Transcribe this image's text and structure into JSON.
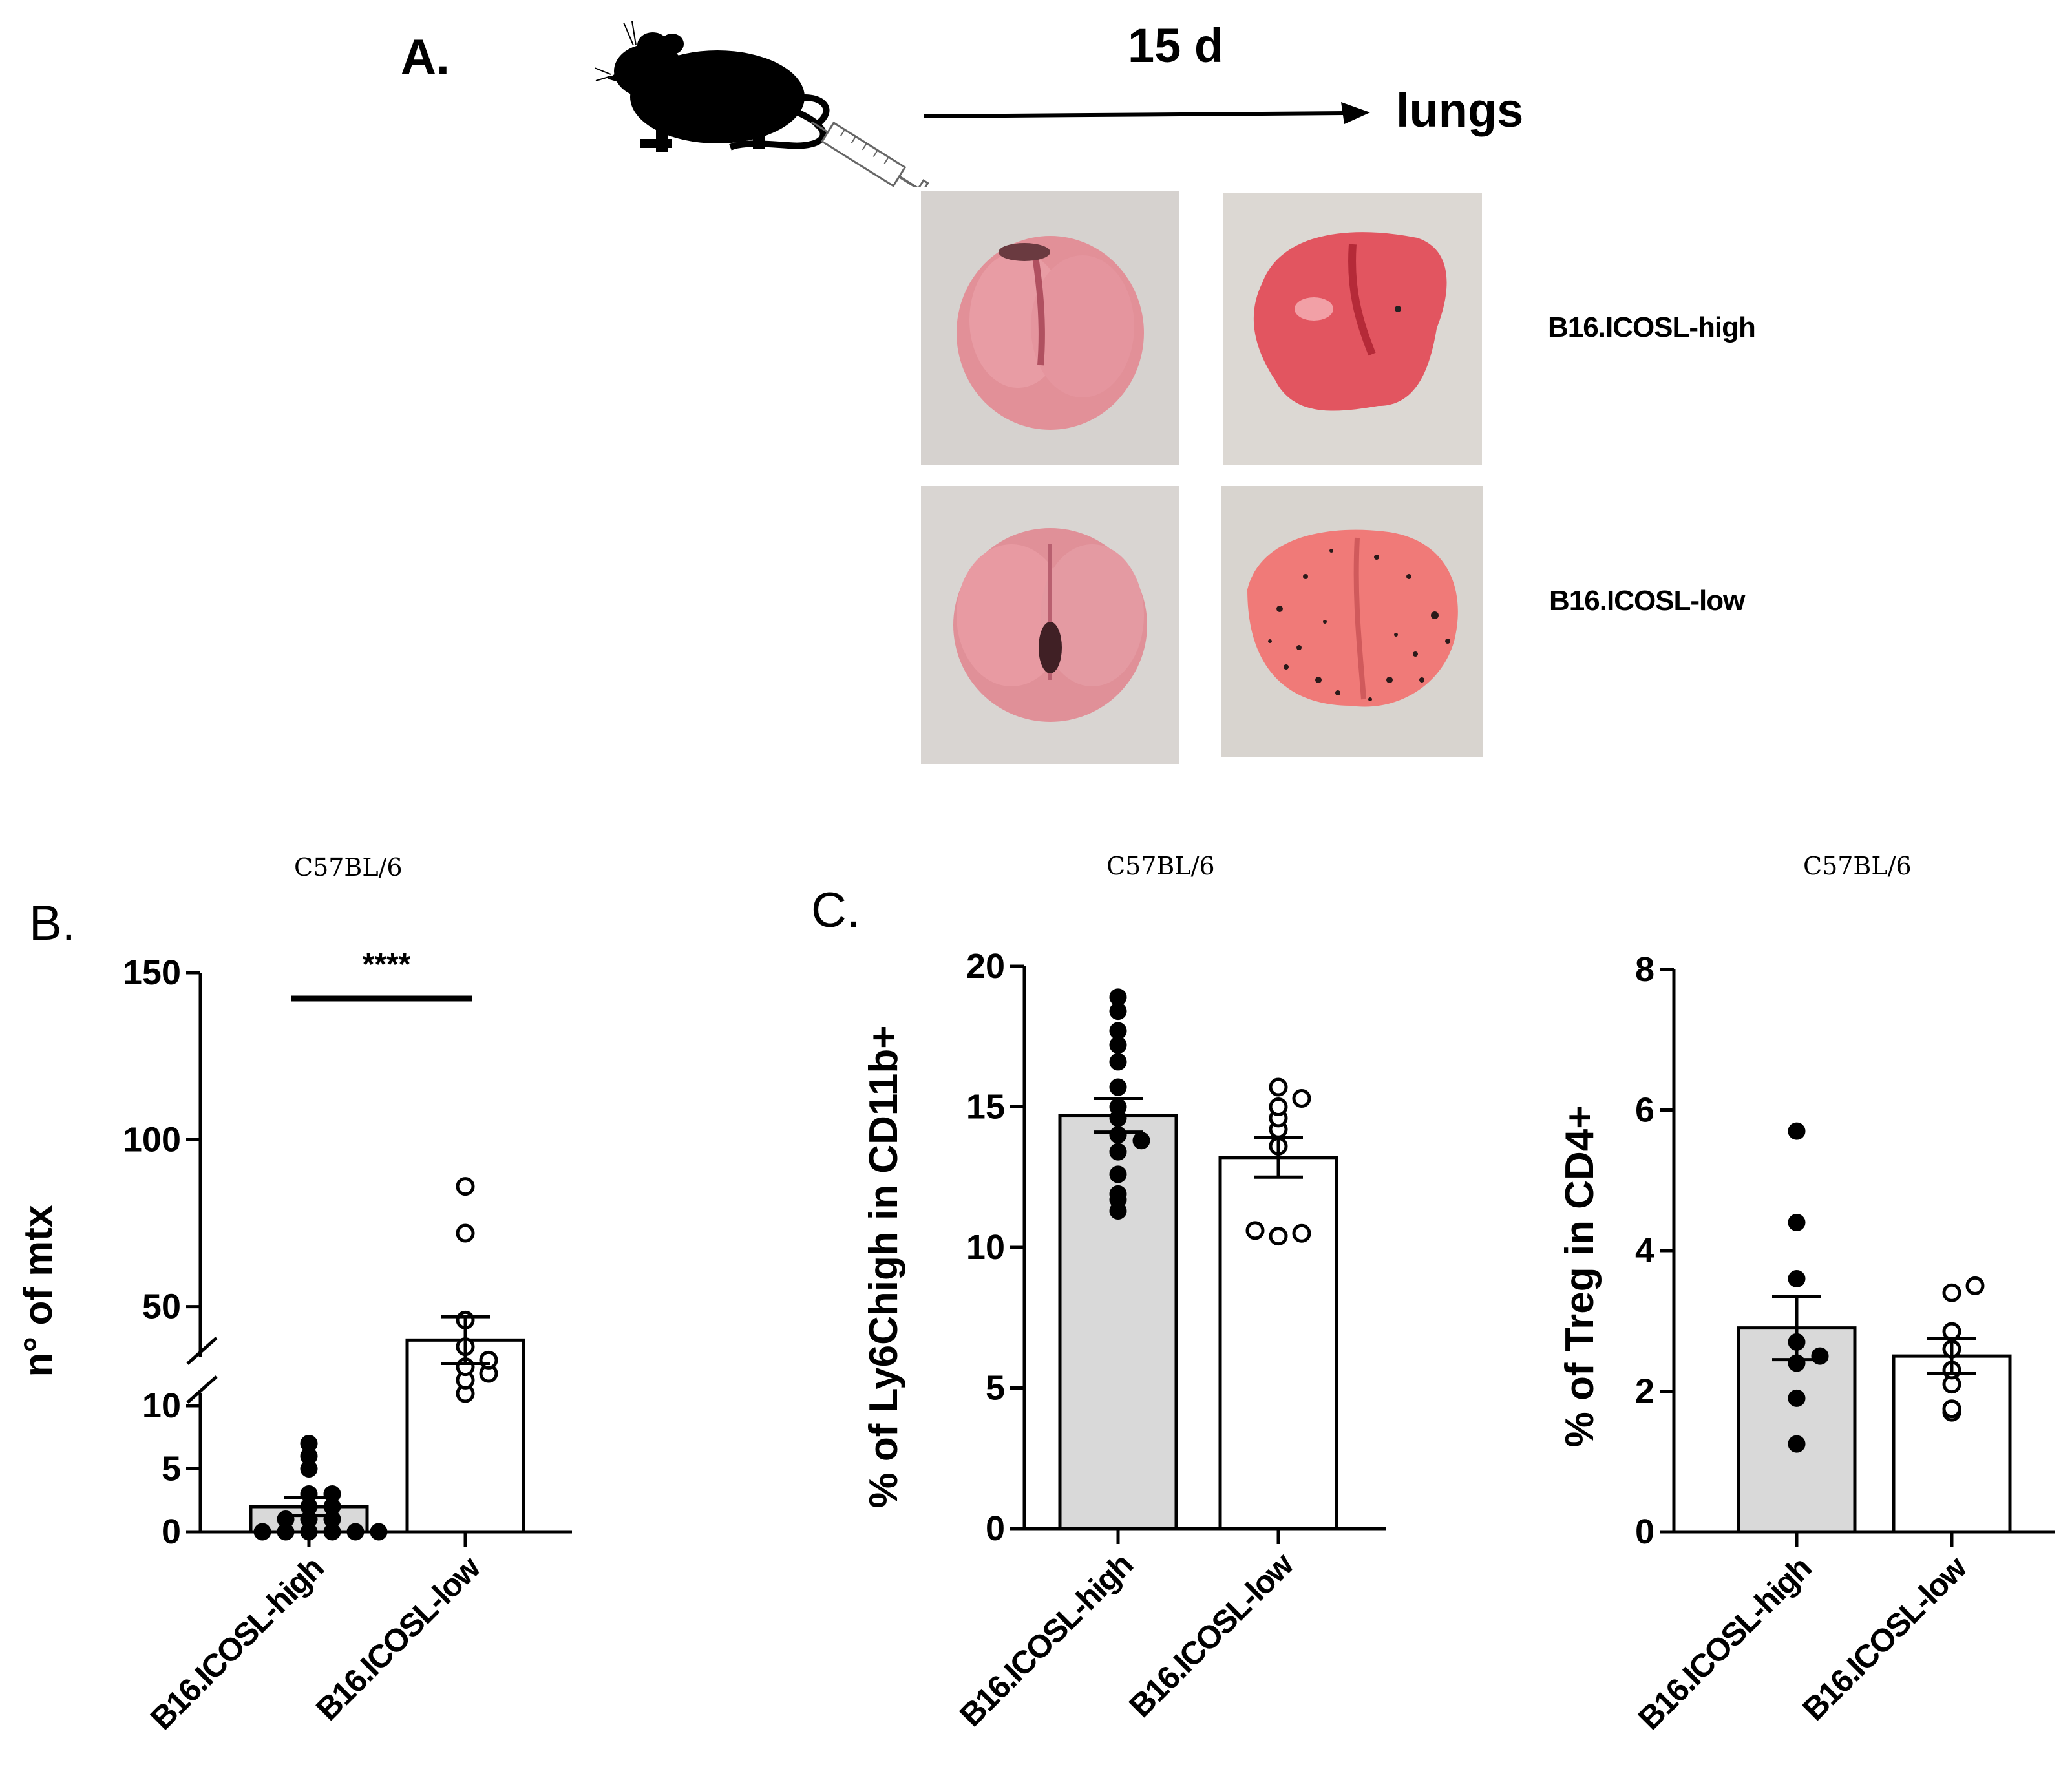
{
  "panel_a": {
    "label": "A.",
    "time": "15 d",
    "organ": "lungs",
    "row_labels": [
      "B16.ICOSL-high",
      "B16.ICOSL-low"
    ]
  },
  "panel_b": {
    "label": "B."
  },
  "panel_c": {
    "label": "C."
  },
  "colors": {
    "filled_bar": "#d9d9d9",
    "empty_bar": "#ffffff",
    "tissue": "#e8828f",
    "background_photo": "#d8d4d0"
  },
  "chart_data": [
    {
      "type": "bar",
      "title": "C57BL/6",
      "ylabel": "n° of mtx",
      "xlabel": "",
      "categories": [
        "B16.ICOSL-high",
        "B16.ICOSL-low"
      ],
      "y_ticks": [
        "0",
        "5",
        "10",
        "50",
        "100",
        "150"
      ],
      "y_axis_break": true,
      "values": [
        2,
        40
      ],
      "errors": [
        0.7,
        7
      ],
      "points": [
        [
          0,
          0,
          0,
          0,
          0,
          0,
          1,
          1,
          1,
          2,
          2,
          3,
          3,
          5,
          6,
          7
        ],
        [
          24,
          28,
          30,
          32,
          34,
          38,
          46,
          72,
          86
        ]
      ],
      "point_styles": [
        "filled",
        "open"
      ],
      "significance": "****"
    },
    {
      "type": "bar",
      "title": "C57BL/6",
      "ylabel": "% of Ly6Chigh in CD11b+",
      "xlabel": "",
      "categories": [
        "B16.ICOSL-high",
        "B16.ICOSL-low"
      ],
      "ylim": [
        0,
        20
      ],
      "y_ticks": [
        "0",
        "5",
        "10",
        "15",
        "20"
      ],
      "values": [
        14.7,
        13.2
      ],
      "errors": [
        0.6,
        0.7
      ],
      "points": [
        [
          11.3,
          11.7,
          11.9,
          12.6,
          13.4,
          13.8,
          14.0,
          14.6,
          15.0,
          15.7,
          16.6,
          17.2,
          17.7,
          18.4,
          18.9
        ],
        [
          10.4,
          10.5,
          10.6,
          13.6,
          14.2,
          14.6,
          15.0,
          15.3,
          15.7
        ]
      ],
      "point_styles": [
        "filled",
        "open"
      ]
    },
    {
      "type": "bar",
      "title": "C57BL/6",
      "ylabel": "% of Treg in CD4+",
      "xlabel": "",
      "categories": [
        "B16.ICOSL-high",
        "B16.ICOSL-low"
      ],
      "ylim": [
        0,
        8
      ],
      "y_ticks": [
        "0",
        "2",
        "4",
        "6",
        "8"
      ],
      "values": [
        2.9,
        2.5
      ],
      "errors": [
        0.45,
        0.25
      ],
      "points": [
        [
          1.25,
          1.9,
          2.4,
          2.5,
          2.7,
          3.6,
          4.4,
          5.7
        ],
        [
          1.7,
          1.75,
          2.1,
          2.3,
          2.6,
          2.85,
          3.4,
          3.5
        ]
      ],
      "point_styles": [
        "filled",
        "open"
      ]
    }
  ]
}
